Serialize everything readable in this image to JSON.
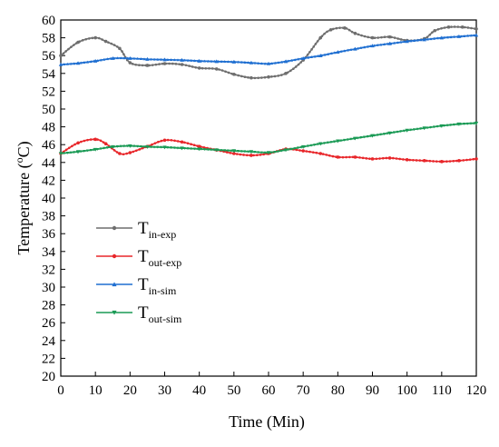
{
  "chart_data": {
    "type": "line",
    "xlabel": "Time (Min)",
    "ylabel": {
      "main": "Temperature (",
      "sup": "o",
      "unit": "C)"
    },
    "xlim": [
      0,
      120
    ],
    "ylim": [
      20,
      60
    ],
    "xticks": [
      0,
      10,
      20,
      30,
      40,
      50,
      60,
      70,
      80,
      90,
      100,
      110,
      120
    ],
    "yticks": [
      20,
      22,
      24,
      26,
      28,
      30,
      32,
      34,
      36,
      38,
      40,
      42,
      44,
      46,
      48,
      50,
      52,
      54,
      56,
      58,
      60
    ],
    "grid": false,
    "legend_position": "middle-left",
    "series": [
      {
        "name": "T",
        "name_sub": "in-exp",
        "color": "#6e6e6e",
        "marker": "circle",
        "x": [
          0,
          5,
          10,
          13,
          17,
          20,
          25,
          30,
          35,
          40,
          45,
          50,
          55,
          60,
          65,
          70,
          75,
          78,
          82,
          85,
          90,
          95,
          100,
          105,
          108,
          112,
          116,
          120
        ],
        "y": [
          56.0,
          57.5,
          58.0,
          57.6,
          56.8,
          55.2,
          54.9,
          55.1,
          55.0,
          54.6,
          54.5,
          53.9,
          53.5,
          53.6,
          54.0,
          55.5,
          58.0,
          58.9,
          59.1,
          58.5,
          58.0,
          58.1,
          57.7,
          57.9,
          58.8,
          59.2,
          59.2,
          59.0
        ]
      },
      {
        "name": "T",
        "name_sub": "out-exp",
        "color": "#e8262a",
        "marker": "circle",
        "x": [
          0,
          5,
          10,
          13,
          17,
          20,
          25,
          30,
          35,
          40,
          45,
          50,
          55,
          60,
          65,
          70,
          75,
          80,
          85,
          90,
          95,
          100,
          105,
          110,
          115,
          120
        ],
        "y": [
          45.0,
          46.2,
          46.6,
          46.1,
          45.0,
          45.1,
          45.8,
          46.5,
          46.3,
          45.8,
          45.4,
          45.0,
          44.8,
          45.0,
          45.5,
          45.3,
          45.0,
          44.6,
          44.6,
          44.4,
          44.5,
          44.3,
          44.2,
          44.1,
          44.2,
          44.4
        ]
      },
      {
        "name": "T",
        "name_sub": "in-sim",
        "color": "#1f6fd1",
        "marker": "triangle-up",
        "x": [
          0,
          5,
          10,
          15,
          20,
          25,
          30,
          35,
          40,
          45,
          50,
          55,
          60,
          65,
          70,
          75,
          80,
          85,
          90,
          95,
          100,
          105,
          110,
          115,
          120
        ],
        "y": [
          55.0,
          55.15,
          55.4,
          55.7,
          55.7,
          55.6,
          55.55,
          55.5,
          55.4,
          55.35,
          55.3,
          55.2,
          55.1,
          55.35,
          55.7,
          56.0,
          56.4,
          56.75,
          57.1,
          57.35,
          57.6,
          57.8,
          58.0,
          58.15,
          58.3
        ]
      },
      {
        "name": "T",
        "name_sub": "out-sim",
        "color": "#1a9a55",
        "marker": "triangle-down",
        "x": [
          0,
          5,
          10,
          15,
          20,
          25,
          30,
          35,
          40,
          45,
          50,
          55,
          60,
          65,
          70,
          75,
          80,
          85,
          90,
          95,
          100,
          105,
          110,
          115,
          120
        ],
        "y": [
          45.0,
          45.2,
          45.45,
          45.75,
          45.85,
          45.75,
          45.7,
          45.6,
          45.5,
          45.4,
          45.3,
          45.2,
          45.1,
          45.4,
          45.75,
          46.1,
          46.4,
          46.7,
          47.0,
          47.3,
          47.6,
          47.85,
          48.1,
          48.3,
          48.4
        ]
      }
    ]
  }
}
